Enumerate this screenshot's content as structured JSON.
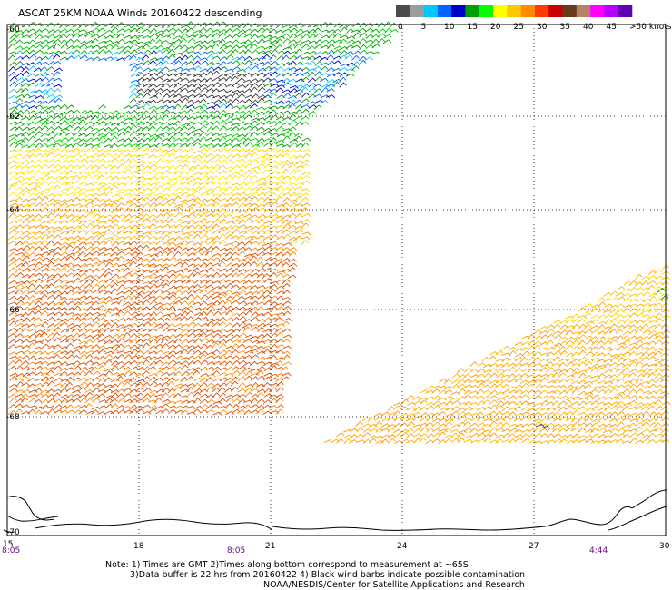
{
  "title": "ASCAT 25KM NOAA Winds 20160422 descending",
  "colorbar": {
    "colors": [
      "#4b4b4b",
      "#9c9c9c",
      "#00c8ff",
      "#0064ff",
      "#0000c8",
      "#00a000",
      "#00ff00",
      "#ffff00",
      "#ffc800",
      "#ff8c00",
      "#ff3c00",
      "#c80000",
      "#6a3a1a",
      "#b48264",
      "#ff00ff",
      "#b400ff",
      "#6400b4"
    ],
    "tick_labels": [
      "0",
      "5",
      "10",
      "15",
      "20",
      "25",
      "30",
      "35",
      "40",
      "45",
      ">50 knots"
    ]
  },
  "axes": {
    "lon_labels": [
      "15",
      "18",
      "21",
      "24",
      "27",
      "30"
    ],
    "lat_labels": [
      "-60",
      "-62",
      "-64",
      "-66",
      "-68",
      "-70"
    ],
    "time_labels": [
      "8:05",
      "8:05",
      "4:44"
    ]
  },
  "notes": {
    "line1": "Note: 1) Times are GMT 2)Times along bottom correspond to measurement at ~65S",
    "line2": "3)Data buffer is 22 hrs from 20160422 4) Black wind barbs indicate possible contamination",
    "line3": "NOAA/NESDIS/Center for Satellite Applications and Research"
  }
}
